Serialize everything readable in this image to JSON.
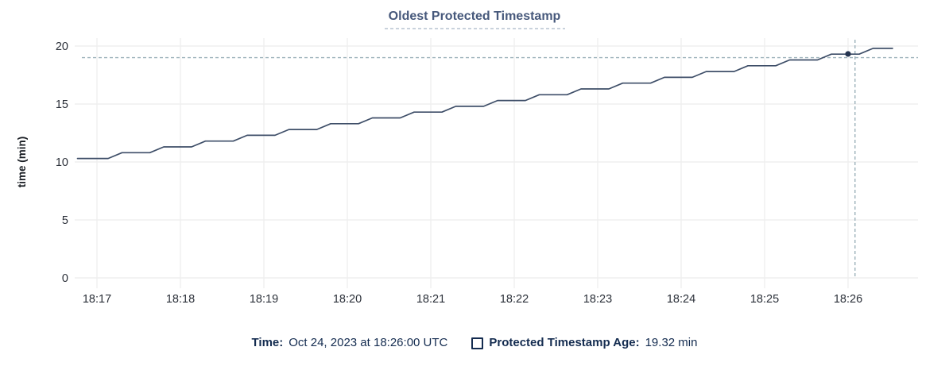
{
  "title": "Oldest Protected Timestamp",
  "legend": {
    "time_label": "Time:",
    "time_value": "Oct 24, 2023 at 18:26:00 UTC",
    "series_label": "Protected Timestamp Age:",
    "series_value": "19.32 min"
  },
  "chart_data": {
    "type": "line",
    "title": "Oldest Protected Timestamp",
    "xlabel": "",
    "ylabel": "time (min)",
    "ylim": [
      0,
      20
    ],
    "yticks": [
      0,
      5,
      10,
      15,
      20
    ],
    "grid": true,
    "legend_position": "bottom",
    "x_time_origin": "18:16:46",
    "xticks": [
      {
        "label": "18:17",
        "sec": 14
      },
      {
        "label": "18:18",
        "sec": 74
      },
      {
        "label": "18:19",
        "sec": 134
      },
      {
        "label": "18:20",
        "sec": 194
      },
      {
        "label": "18:21",
        "sec": 254
      },
      {
        "label": "18:22",
        "sec": 314
      },
      {
        "label": "18:23",
        "sec": 374
      },
      {
        "label": "18:24",
        "sec": 434
      },
      {
        "label": "18:25",
        "sec": 494
      },
      {
        "label": "18:26",
        "sec": 554
      }
    ],
    "series": [
      {
        "name": "Protected Timestamp Age",
        "unit": "min",
        "points_sec_value": [
          [
            0,
            10.3
          ],
          [
            22,
            10.3
          ],
          [
            32,
            10.8
          ],
          [
            52,
            10.8
          ],
          [
            62,
            11.3
          ],
          [
            82,
            11.3
          ],
          [
            92,
            11.8
          ],
          [
            112,
            11.8
          ],
          [
            122,
            12.3
          ],
          [
            142,
            12.3
          ],
          [
            152,
            12.8
          ],
          [
            172,
            12.8
          ],
          [
            182,
            13.3
          ],
          [
            202,
            13.3
          ],
          [
            212,
            13.8
          ],
          [
            232,
            13.8
          ],
          [
            242,
            14.3
          ],
          [
            262,
            14.3
          ],
          [
            272,
            14.8
          ],
          [
            292,
            14.8
          ],
          [
            302,
            15.3
          ],
          [
            322,
            15.3
          ],
          [
            332,
            15.8
          ],
          [
            352,
            15.8
          ],
          [
            362,
            16.3
          ],
          [
            382,
            16.3
          ],
          [
            392,
            16.8
          ],
          [
            412,
            16.8
          ],
          [
            422,
            17.3
          ],
          [
            442,
            17.3
          ],
          [
            452,
            17.8
          ],
          [
            472,
            17.8
          ],
          [
            482,
            18.3
          ],
          [
            502,
            18.3
          ],
          [
            512,
            18.8
          ],
          [
            532,
            18.8
          ],
          [
            542,
            19.3
          ],
          [
            562,
            19.3
          ],
          [
            572,
            19.8
          ],
          [
            586,
            19.8
          ]
        ]
      }
    ],
    "hover": {
      "time": "18:26:00",
      "sec": 554,
      "value": 19.32,
      "crosshair_sec": 559,
      "crosshair_value": 19.0
    },
    "colors": {
      "line": "#3e4e68",
      "dot": "#253450",
      "grid": "#efefef",
      "crosshair": "#9eb2bb",
      "title": "#46587b",
      "title_underline": "#a9b6c6",
      "axis_text": "#2b3039",
      "legend_text": "#142c50"
    }
  }
}
